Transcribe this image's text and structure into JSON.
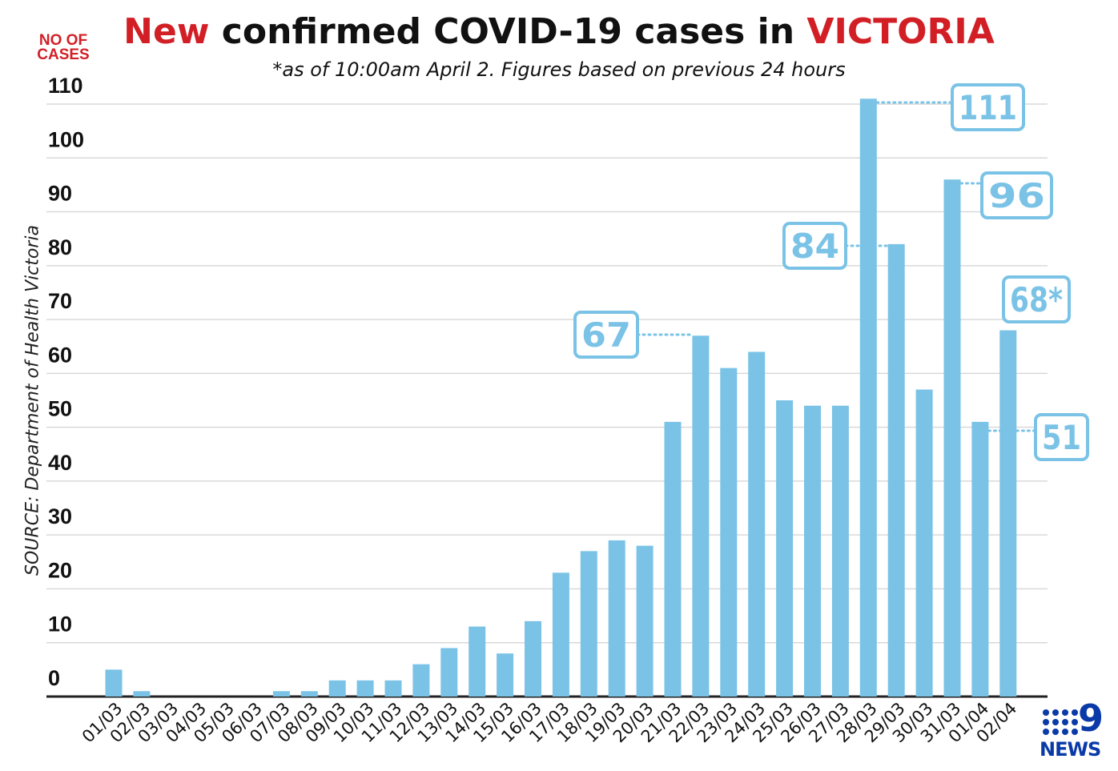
{
  "title": {
    "part1": "New",
    "part2": " confirmed COVID-19 cases in ",
    "part3": "VICTORIA"
  },
  "subtitle": "*as of 10:00am April 2. Figures based on previous 24 hours",
  "source": "SOURCE: Department of Health Victoria",
  "logo": {
    "number": "9",
    "text": "NEWS",
    "color": "#0a3aa8"
  },
  "colors": {
    "bar": "#7bc3e6",
    "accent": "#d21f26",
    "grid": "#d9d9d9",
    "callout": "#7bc3e6"
  },
  "chart_data": {
    "type": "bar",
    "title": "New confirmed COVID-19 cases in VICTORIA",
    "subtitle": "*as of 10:00am April 2. Figures based on previous 24 hours",
    "ylabel": "NO OF CASES",
    "xlabel": "",
    "ylim": [
      0,
      110
    ],
    "yticks": [
      0,
      10,
      20,
      30,
      40,
      50,
      60,
      70,
      80,
      90,
      100,
      110
    ],
    "grid": true,
    "categories": [
      "01/03",
      "02/03",
      "03/03",
      "04/03",
      "05/03",
      "06/03",
      "07/03",
      "08/03",
      "09/03",
      "10/03",
      "11/03",
      "12/03",
      "13/03",
      "14/03",
      "15/03",
      "16/03",
      "17/03",
      "18/03",
      "19/03",
      "20/03",
      "21/03",
      "22/03",
      "23/03",
      "24/03",
      "25/03",
      "26/03",
      "27/03",
      "28/03",
      "29/03",
      "30/03",
      "31/03",
      "01/04",
      "02/04"
    ],
    "values": [
      5,
      1,
      0,
      0,
      0,
      0,
      1,
      1,
      3,
      3,
      3,
      6,
      9,
      13,
      8,
      14,
      23,
      27,
      29,
      28,
      51,
      67,
      61,
      64,
      55,
      54,
      54,
      111,
      84,
      57,
      96,
      51,
      68
    ],
    "annotations": [
      {
        "category": "22/03",
        "text": "67"
      },
      {
        "category": "28/03",
        "text": "111"
      },
      {
        "category": "29/03",
        "text": "84"
      },
      {
        "category": "31/03",
        "text": "96"
      },
      {
        "category": "01/04",
        "text": "51"
      },
      {
        "category": "02/04",
        "text": "68*"
      }
    ]
  }
}
